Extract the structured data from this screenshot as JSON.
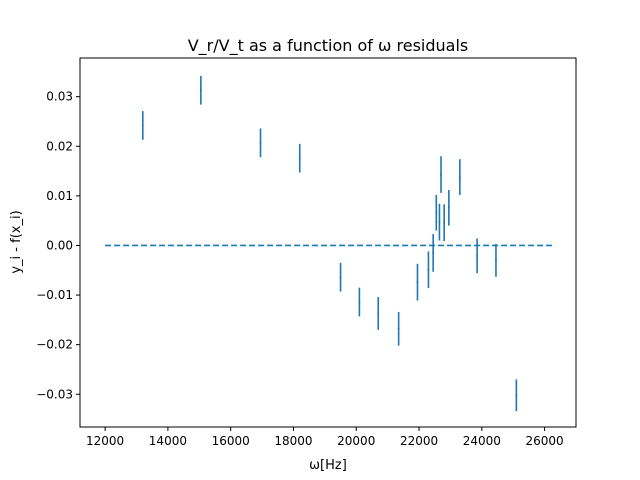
{
  "chart_data": {
    "type": "scatter",
    "title": "V_r/V_t as a function of ω residuals",
    "xlabel": "ω[Hz]",
    "ylabel": "y_i - f(x_i)",
    "xlim": [
      11200,
      27000
    ],
    "ylim": [
      -0.0366,
      0.0378
    ],
    "xticks": [
      12000,
      14000,
      16000,
      18000,
      20000,
      22000,
      24000,
      26000
    ],
    "yticks": [
      -0.03,
      -0.02,
      -0.01,
      0.0,
      0.01,
      0.02,
      0.03
    ],
    "xtick_labels": [
      "12000",
      "14000",
      "16000",
      "18000",
      "20000",
      "22000",
      "24000",
      "26000"
    ],
    "ytick_labels": [
      "−0.03",
      "−0.02",
      "−0.01",
      "0.00",
      "0.01",
      "0.02",
      "0.03"
    ],
    "grid": false,
    "color": "#1f77b4",
    "reference_line": {
      "y": 0.0,
      "x": [
        12000,
        26300
      ],
      "style": "dashed"
    },
    "points": [
      {
        "x": 13200,
        "y": 0.0242,
        "yerr": 0.0029
      },
      {
        "x": 15050,
        "y": 0.0313,
        "yerr": 0.0029
      },
      {
        "x": 16950,
        "y": 0.0207,
        "yerr": 0.0029
      },
      {
        "x": 18200,
        "y": 0.0176,
        "yerr": 0.0029
      },
      {
        "x": 19500,
        "y": -0.0064,
        "yerr": 0.0029
      },
      {
        "x": 20100,
        "y": -0.0114,
        "yerr": 0.0029
      },
      {
        "x": 20700,
        "y": -0.0137,
        "yerr": 0.0033
      },
      {
        "x": 21350,
        "y": -0.0168,
        "yerr": 0.0034
      },
      {
        "x": 21950,
        "y": -0.0074,
        "yerr": 0.0037
      },
      {
        "x": 22300,
        "y": -0.0049,
        "yerr": 0.0037
      },
      {
        "x": 22450,
        "y": -0.0015,
        "yerr": 0.0038
      },
      {
        "x": 22550,
        "y": 0.0066,
        "yerr": 0.0036
      },
      {
        "x": 22650,
        "y": 0.0047,
        "yerr": 0.0037
      },
      {
        "x": 22700,
        "y": 0.0143,
        "yerr": 0.0037
      },
      {
        "x": 22800,
        "y": 0.0046,
        "yerr": 0.0037
      },
      {
        "x": 22950,
        "y": 0.0076,
        "yerr": 0.0036
      },
      {
        "x": 23300,
        "y": 0.0138,
        "yerr": 0.0036
      },
      {
        "x": 23850,
        "y": -0.0021,
        "yerr": 0.0035
      },
      {
        "x": 24450,
        "y": -0.003,
        "yerr": 0.0033
      },
      {
        "x": 25100,
        "y": -0.0302,
        "yerr": 0.0032
      }
    ]
  }
}
